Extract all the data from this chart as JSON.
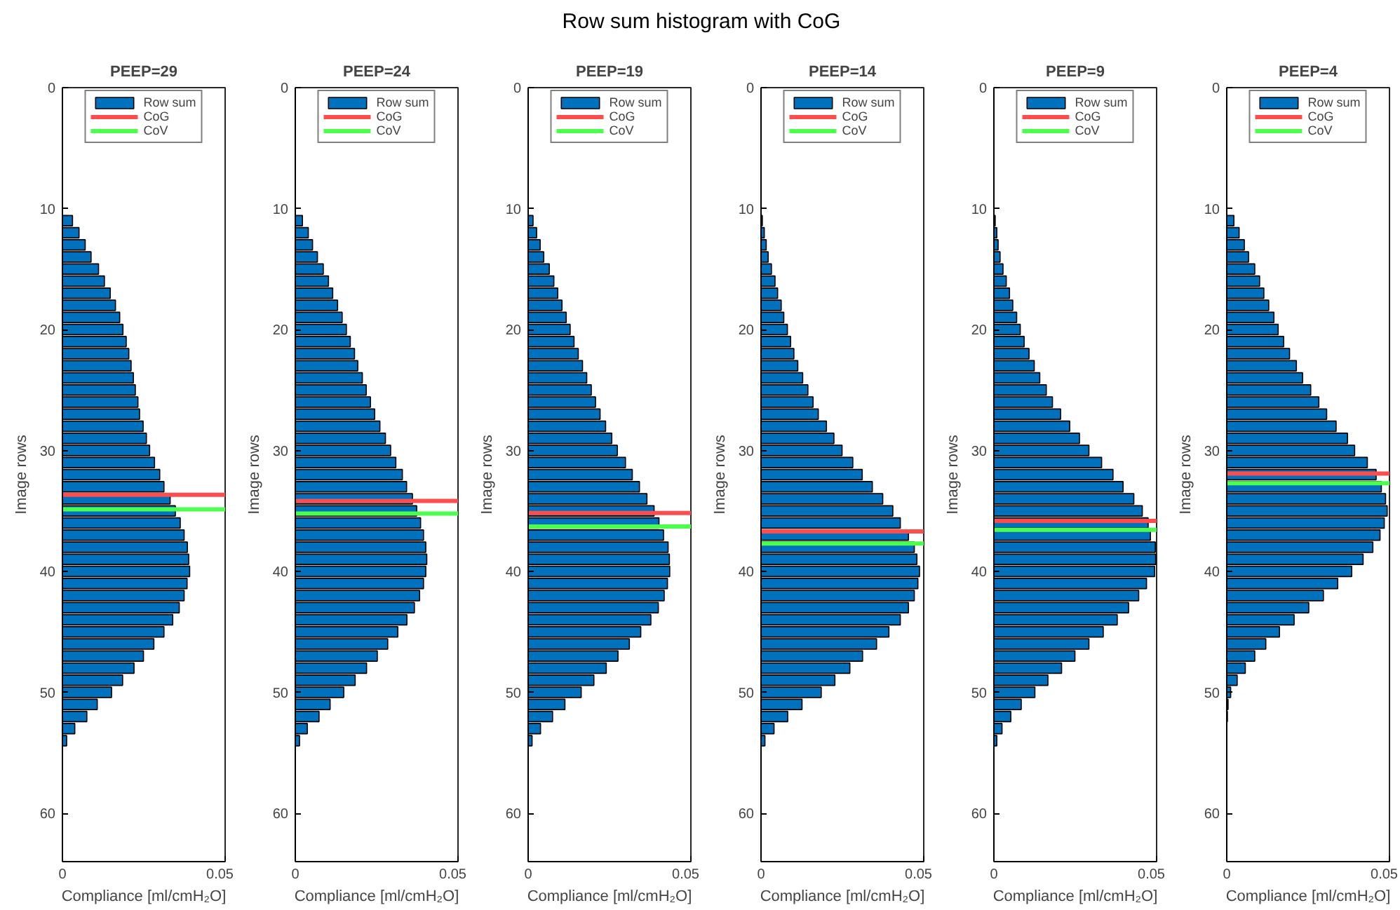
{
  "chart_data": [
    {
      "type": "bar",
      "orientation": "horizontal",
      "title": "PEEP=29",
      "xlabel": "Compliance [ml/cmH₂O]",
      "ylabel": "Image rows",
      "annotations": [
        "Row sum histogram with CoG"
      ],
      "x": [
        11,
        12,
        13,
        14,
        15,
        16,
        17,
        18,
        19,
        20,
        21,
        22,
        23,
        24,
        25,
        26,
        27,
        28,
        29,
        30,
        31,
        32,
        33,
        34,
        35,
        36,
        37,
        38,
        39,
        40,
        41,
        42,
        43,
        44,
        45,
        46,
        47,
        48,
        49,
        50,
        51,
        52,
        53,
        54
      ],
      "series": [
        {
          "name": "Row sum",
          "color": "#0072bd",
          "values": [
            0.0031,
            0.0051,
            0.007,
            0.0088,
            0.0111,
            0.0129,
            0.0147,
            0.0163,
            0.0176,
            0.0186,
            0.0196,
            0.0204,
            0.0211,
            0.0218,
            0.0224,
            0.0232,
            0.0237,
            0.0248,
            0.0258,
            0.0268,
            0.0283,
            0.0299,
            0.0312,
            0.0331,
            0.0347,
            0.0362,
            0.0374,
            0.0384,
            0.0388,
            0.0391,
            0.0383,
            0.0374,
            0.0359,
            0.0339,
            0.0312,
            0.0281,
            0.0249,
            0.022,
            0.0185,
            0.0151,
            0.0107,
            0.0075,
            0.0038,
            0.0013
          ]
        }
      ],
      "ref_lines": [
        {
          "axis": "y",
          "value": 33.67,
          "label": "CoG",
          "color": "#ff4d4d"
        },
        {
          "axis": "y",
          "value": 34.87,
          "label": "CoV",
          "color": "#4dff4d"
        }
      ],
      "xlim": [
        0,
        0.05
      ],
      "xticks": [
        0,
        0.05
      ],
      "ylim": [
        64,
        0
      ],
      "yticks": [
        0,
        10,
        20,
        30,
        40,
        50,
        60
      ],
      "grid": false,
      "legend": "top"
    },
    {
      "type": "bar",
      "orientation": "horizontal",
      "title": "PEEP=24",
      "xlabel": "Compliance [ml/cmH₂O]",
      "ylabel": "Image rows",
      "x": [
        11,
        12,
        13,
        14,
        15,
        16,
        17,
        18,
        19,
        20,
        21,
        22,
        23,
        24,
        25,
        26,
        27,
        28,
        29,
        30,
        31,
        32,
        33,
        34,
        35,
        36,
        37,
        38,
        39,
        40,
        41,
        42,
        43,
        44,
        45,
        46,
        47,
        48,
        49,
        50,
        51,
        52,
        53,
        54
      ],
      "series": [
        {
          "name": "Row sum",
          "color": "#0072bd",
          "values": [
            0.0022,
            0.004,
            0.0053,
            0.0068,
            0.0086,
            0.0102,
            0.0115,
            0.013,
            0.0144,
            0.0157,
            0.0169,
            0.0182,
            0.0192,
            0.0206,
            0.0218,
            0.0231,
            0.0244,
            0.026,
            0.0277,
            0.0293,
            0.0309,
            0.0329,
            0.0342,
            0.036,
            0.0373,
            0.0385,
            0.0394,
            0.0401,
            0.0404,
            0.0401,
            0.0394,
            0.0382,
            0.0366,
            0.0343,
            0.0315,
            0.0284,
            0.0252,
            0.0219,
            0.0184,
            0.0149,
            0.0107,
            0.0073,
            0.0037,
            0.0013
          ]
        }
      ],
      "ref_lines": [
        {
          "axis": "y",
          "value": 34.18,
          "label": "CoG",
          "color": "#ff4d4d"
        },
        {
          "axis": "y",
          "value": 35.22,
          "label": "CoV",
          "color": "#4dff4d"
        }
      ],
      "xlim": [
        0,
        0.05
      ],
      "xticks": [
        0,
        0.05
      ],
      "ylim": [
        64,
        0
      ],
      "yticks": [
        0,
        10,
        20,
        30,
        40,
        50,
        60
      ],
      "grid": false,
      "legend": "top"
    },
    {
      "type": "bar",
      "orientation": "horizontal",
      "title": "PEEP=19",
      "xlabel": "Compliance [ml/cmH₂O]",
      "ylabel": "Image rows",
      "x": [
        11,
        12,
        13,
        14,
        15,
        16,
        17,
        18,
        19,
        20,
        21,
        22,
        23,
        24,
        25,
        26,
        27,
        28,
        29,
        30,
        31,
        32,
        33,
        34,
        35,
        36,
        37,
        38,
        39,
        40,
        41,
        42,
        43,
        44,
        45,
        46,
        47,
        48,
        49,
        50,
        51,
        52,
        53,
        54
      ],
      "series": [
        {
          "name": "Row sum",
          "color": "#0072bd",
          "values": [
            0.0015,
            0.0026,
            0.0037,
            0.0048,
            0.0065,
            0.0079,
            0.0091,
            0.0104,
            0.0117,
            0.0129,
            0.0141,
            0.0154,
            0.0167,
            0.018,
            0.0194,
            0.0207,
            0.0221,
            0.0238,
            0.0257,
            0.0274,
            0.0299,
            0.032,
            0.0342,
            0.0365,
            0.0387,
            0.0402,
            0.0416,
            0.043,
            0.0434,
            0.0435,
            0.0428,
            0.0418,
            0.04,
            0.0377,
            0.0346,
            0.0311,
            0.0276,
            0.024,
            0.0202,
            0.0163,
            0.0113,
            0.0075,
            0.0038,
            0.0012
          ]
        }
      ],
      "ref_lines": [
        {
          "axis": "y",
          "value": 35.18,
          "label": "CoG",
          "color": "#ff4d4d"
        },
        {
          "axis": "y",
          "value": 36.29,
          "label": "CoV",
          "color": "#4dff4d"
        }
      ],
      "xlim": [
        0,
        0.05
      ],
      "xticks": [
        0,
        0.05
      ],
      "ylim": [
        64,
        0
      ],
      "yticks": [
        0,
        10,
        20,
        30,
        40,
        50,
        60
      ],
      "grid": false,
      "legend": "top"
    },
    {
      "type": "bar",
      "orientation": "horizontal",
      "title": "PEEP=14",
      "xlabel": "Compliance [ml/cmH₂O]",
      "ylabel": "Image rows",
      "x": [
        11,
        12,
        13,
        14,
        15,
        16,
        17,
        18,
        19,
        20,
        21,
        22,
        23,
        24,
        25,
        26,
        27,
        28,
        29,
        30,
        31,
        32,
        33,
        34,
        35,
        36,
        37,
        38,
        39,
        40,
        41,
        42,
        43,
        44,
        45,
        46,
        47,
        48,
        49,
        50,
        51,
        52,
        53,
        54
      ],
      "series": [
        {
          "name": "Row sum",
          "color": "#0072bd",
          "values": [
            0.0004,
            0.001,
            0.0016,
            0.0022,
            0.0032,
            0.0043,
            0.0051,
            0.0062,
            0.007,
            0.0081,
            0.0091,
            0.0101,
            0.0113,
            0.0128,
            0.0144,
            0.016,
            0.0176,
            0.0201,
            0.0224,
            0.0249,
            0.0282,
            0.0311,
            0.0342,
            0.0374,
            0.0405,
            0.0428,
            0.0453,
            0.0471,
            0.0479,
            0.0487,
            0.0482,
            0.0471,
            0.0453,
            0.0428,
            0.0393,
            0.0355,
            0.0312,
            0.0273,
            0.0227,
            0.0185,
            0.0126,
            0.0082,
            0.004,
            0.0012
          ]
        }
      ],
      "ref_lines": [
        {
          "axis": "y",
          "value": 36.69,
          "label": "CoG",
          "color": "#ff4d4d"
        },
        {
          "axis": "y",
          "value": 37.69,
          "label": "CoV",
          "color": "#4dff4d"
        }
      ],
      "xlim": [
        0,
        0.05
      ],
      "xticks": [
        0,
        0.05
      ],
      "ylim": [
        64,
        0
      ],
      "yticks": [
        0,
        10,
        20,
        30,
        40,
        50,
        60
      ],
      "grid": false,
      "legend": "top"
    },
    {
      "type": "bar",
      "orientation": "horizontal",
      "title": "PEEP=9",
      "xlabel": "Compliance [ml/cmH₂O]",
      "ylabel": "Image rows",
      "x": [
        11,
        12,
        13,
        14,
        15,
        16,
        17,
        18,
        19,
        20,
        21,
        22,
        23,
        24,
        25,
        26,
        27,
        28,
        29,
        30,
        31,
        32,
        33,
        34,
        35,
        36,
        37,
        38,
        39,
        40,
        41,
        42,
        43,
        44,
        45,
        46,
        47,
        48,
        49,
        50,
        51,
        52,
        53,
        54
      ],
      "series": [
        {
          "name": "Row sum",
          "color": "#0072bd",
          "values": [
            0.0004,
            0.0009,
            0.0013,
            0.0019,
            0.0028,
            0.0038,
            0.0048,
            0.0058,
            0.007,
            0.0081,
            0.0093,
            0.0108,
            0.0124,
            0.0141,
            0.0161,
            0.018,
            0.0205,
            0.0233,
            0.0263,
            0.0292,
            0.0331,
            0.0366,
            0.0397,
            0.043,
            0.0456,
            0.0474,
            0.0481,
            0.0496,
            0.0497,
            0.0494,
            0.0469,
            0.0445,
            0.0414,
            0.0379,
            0.0336,
            0.0292,
            0.0249,
            0.0208,
            0.0166,
            0.0126,
            0.0084,
            0.0052,
            0.0025,
            0.0009
          ]
        }
      ],
      "ref_lines": [
        {
          "axis": "y",
          "value": 35.82,
          "label": "CoG",
          "color": "#ff4d4d"
        },
        {
          "axis": "y",
          "value": 36.57,
          "label": "CoV",
          "color": "#4dff4d"
        }
      ],
      "xlim": [
        0,
        0.05
      ],
      "xticks": [
        0,
        0.05
      ],
      "ylim": [
        64,
        0
      ],
      "yticks": [
        0,
        10,
        20,
        30,
        40,
        50,
        60
      ],
      "grid": false,
      "legend": "top"
    },
    {
      "type": "bar",
      "orientation": "horizontal",
      "title": "PEEP=4",
      "xlabel": "Compliance [ml/cmH₂O]",
      "ylabel": "Image rows",
      "x": [
        11,
        12,
        13,
        14,
        15,
        16,
        17,
        18,
        19,
        20,
        21,
        22,
        23,
        24,
        25,
        26,
        27,
        28,
        29,
        30,
        31,
        32,
        33,
        34,
        35,
        36,
        37,
        38,
        39,
        40,
        41,
        42,
        43,
        44,
        45,
        46,
        47,
        48,
        49,
        50,
        51,
        52
      ],
      "series": [
        {
          "name": "Row sum",
          "color": "#0072bd",
          "values": [
            0.0022,
            0.0038,
            0.0054,
            0.0067,
            0.0086,
            0.0101,
            0.0114,
            0.0129,
            0.0145,
            0.0158,
            0.0175,
            0.0193,
            0.0214,
            0.0233,
            0.0258,
            0.0283,
            0.0307,
            0.0336,
            0.0371,
            0.0393,
            0.0432,
            0.0459,
            0.0475,
            0.0488,
            0.0493,
            0.0484,
            0.0471,
            0.0449,
            0.0419,
            0.0384,
            0.0341,
            0.0297,
            0.0252,
            0.0207,
            0.0162,
            0.012,
            0.0086,
            0.0057,
            0.0032,
            0.0012,
            0.0004,
            0.0002
          ]
        }
      ],
      "ref_lines": [
        {
          "axis": "y",
          "value": 31.91,
          "label": "CoG",
          "color": "#ff4d4d"
        },
        {
          "axis": "y",
          "value": 32.71,
          "label": "CoV",
          "color": "#4dff4d"
        }
      ],
      "xlim": [
        0,
        0.05
      ],
      "xticks": [
        0,
        0.05
      ],
      "ylim": [
        64,
        0
      ],
      "yticks": [
        0,
        10,
        20,
        30,
        40,
        50,
        60
      ],
      "grid": false,
      "legend": "top"
    }
  ]
}
